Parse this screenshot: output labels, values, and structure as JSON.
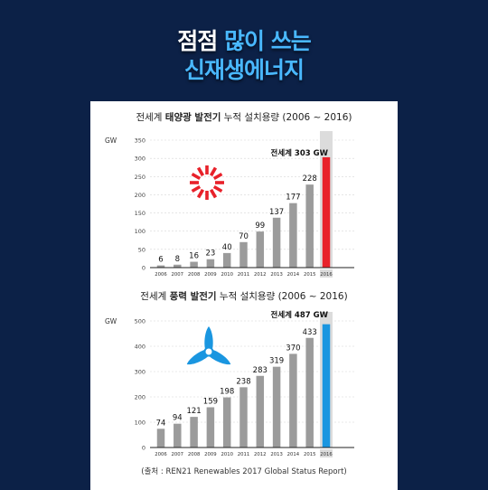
{
  "header": {
    "line1_a": "점점",
    "line1_b": "많이 쓰는",
    "line2": "신재생에너지"
  },
  "colors": {
    "background": "#0c2147",
    "title_highlight": "#49b8ff",
    "bar_gray": "#9b9b9b",
    "solar_accent": "#e8212a",
    "wind_accent": "#1a96e0"
  },
  "chart_data": [
    {
      "type": "bar",
      "title_a": "전세계 ",
      "title_b": "태양광 발전기",
      "title_c": " 누적 설치용량 (2006 ~ 2016)",
      "ylabel": "GW",
      "ylim": [
        0,
        350
      ],
      "yticks": [
        0,
        50,
        100,
        150,
        200,
        250,
        300,
        350
      ],
      "categories": [
        "2006",
        "2007",
        "2008",
        "2009",
        "2010",
        "2011",
        "2012",
        "2013",
        "2014",
        "2015",
        "2016"
      ],
      "values": [
        6,
        8,
        16,
        23,
        40,
        70,
        99,
        137,
        177,
        228,
        303
      ],
      "labels": [
        "6",
        "8",
        "16",
        "23",
        "40",
        "70",
        "99",
        "137",
        "177",
        "228",
        ""
      ],
      "callout": "전세계 303 GW",
      "icon": "sun-icon"
    },
    {
      "type": "bar",
      "title_a": "전세계 ",
      "title_b": "풍력 발전기",
      "title_c": " 누적 설치용량 (2006 ~ 2016)",
      "ylabel": "GW",
      "ylim": [
        0,
        500
      ],
      "yticks": [
        0,
        100,
        200,
        300,
        400,
        500
      ],
      "categories": [
        "2006",
        "2007",
        "2008",
        "2009",
        "2010",
        "2011",
        "2012",
        "2013",
        "2014",
        "2015",
        "2016"
      ],
      "values": [
        74,
        94,
        121,
        159,
        198,
        238,
        283,
        319,
        370,
        433,
        487
      ],
      "labels": [
        "74",
        "94",
        "121",
        "159",
        "198",
        "238",
        "283",
        "319",
        "370",
        "433",
        ""
      ],
      "callout": "전세계 487 GW",
      "icon": "wind-turbine-icon"
    }
  ],
  "source": "(출처 : REN21 Renewables 2017 Global Status Report)"
}
